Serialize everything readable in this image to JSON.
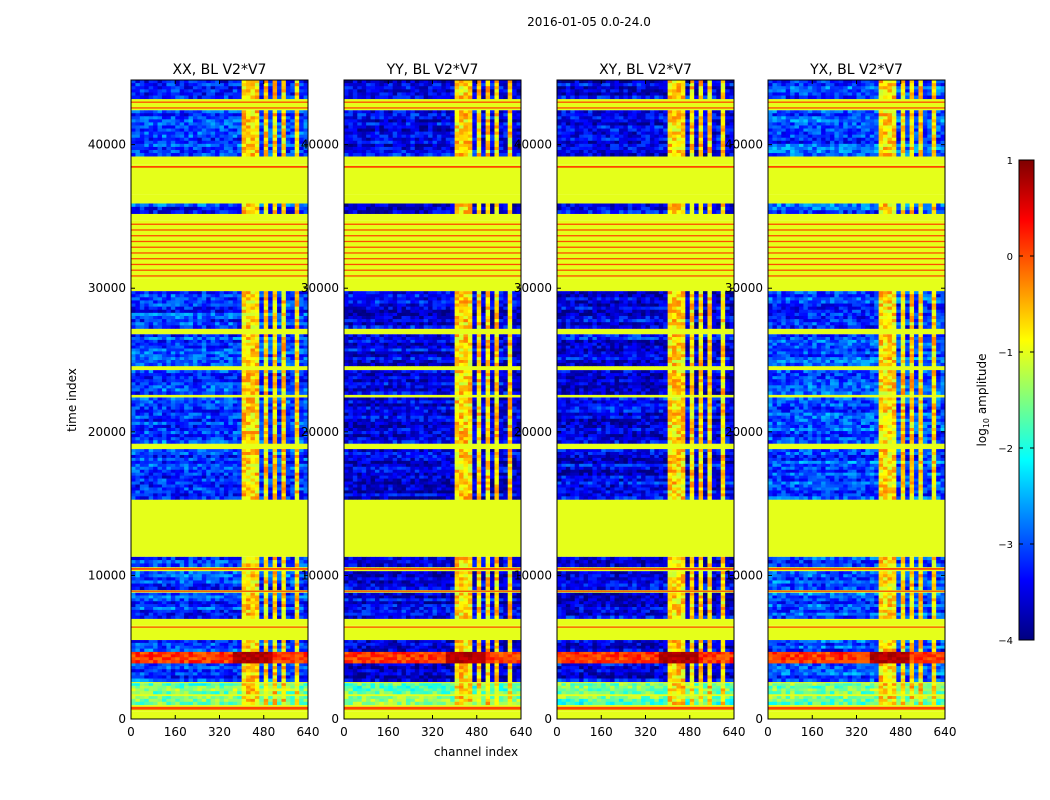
{
  "chart_data": {
    "type": "heatmap",
    "title": "2016-01-05 0.0-24.0",
    "xlabel": "channel index",
    "ylabel": "time index",
    "xlim": [
      0,
      640
    ],
    "ylim": [
      0,
      44500
    ],
    "x_ticks": [
      0,
      160,
      320,
      480,
      640
    ],
    "y_ticks": [
      0,
      10000,
      20000,
      30000,
      40000
    ],
    "panels": [
      {
        "title": "XX, BL V2*V7"
      },
      {
        "title": "YY, BL V2*V7"
      },
      {
        "title": "XY, BL V2*V7"
      },
      {
        "title": "YX, BL V2*V7"
      }
    ],
    "colorbar": {
      "label_prefix": "log",
      "label_sub": "10",
      "label_suffix": " amplitude",
      "range": [
        -4,
        1
      ],
      "ticks": [
        "1",
        "0",
        "−1",
        "−2",
        "−3",
        "−4"
      ],
      "colormap": "jet"
    },
    "flagged_value": -1.0,
    "time_bands": [
      {
        "y0": 0,
        "y1": 500,
        "kind": "flag"
      },
      {
        "y0": 500,
        "y1": 1000,
        "kind": "flag_orange"
      },
      {
        "y0": 1000,
        "y1": 1600,
        "kind": "data_low"
      },
      {
        "y0": 1600,
        "y1": 1750,
        "kind": "flag"
      },
      {
        "y0": 1750,
        "y1": 2500,
        "kind": "data_low"
      },
      {
        "y0": 2500,
        "y1": 2600,
        "kind": "flag"
      },
      {
        "y0": 2600,
        "y1": 3900,
        "kind": "data"
      },
      {
        "y0": 3900,
        "y1": 4700,
        "kind": "bright"
      },
      {
        "y0": 4700,
        "y1": 5500,
        "kind": "data"
      },
      {
        "y0": 5500,
        "y1": 6300,
        "kind": "flag"
      },
      {
        "y0": 6300,
        "y1": 6500,
        "kind": "flag_orange"
      },
      {
        "y0": 6500,
        "y1": 7000,
        "kind": "flag"
      },
      {
        "y0": 7000,
        "y1": 8800,
        "kind": "data"
      },
      {
        "y0": 8800,
        "y1": 9000,
        "kind": "flag_orange"
      },
      {
        "y0": 9000,
        "y1": 10300,
        "kind": "data"
      },
      {
        "y0": 10300,
        "y1": 10600,
        "kind": "flag_orange"
      },
      {
        "y0": 10600,
        "y1": 11300,
        "kind": "data"
      },
      {
        "y0": 11300,
        "y1": 15300,
        "kind": "flag"
      },
      {
        "y0": 15300,
        "y1": 18800,
        "kind": "data"
      },
      {
        "y0": 18800,
        "y1": 19200,
        "kind": "flag"
      },
      {
        "y0": 19200,
        "y1": 22400,
        "kind": "data"
      },
      {
        "y0": 22400,
        "y1": 22600,
        "kind": "flag"
      },
      {
        "y0": 22600,
        "y1": 24300,
        "kind": "data"
      },
      {
        "y0": 24300,
        "y1": 24600,
        "kind": "flag"
      },
      {
        "y0": 24600,
        "y1": 26800,
        "kind": "data"
      },
      {
        "y0": 26800,
        "y1": 27200,
        "kind": "flag"
      },
      {
        "y0": 27200,
        "y1": 29800,
        "kind": "data"
      },
      {
        "y0": 29800,
        "y1": 30700,
        "kind": "flag"
      },
      {
        "y0": 30700,
        "y1": 34700,
        "kind": "flag_striped"
      },
      {
        "y0": 34700,
        "y1": 35200,
        "kind": "flag"
      },
      {
        "y0": 35200,
        "y1": 35900,
        "kind": "data"
      },
      {
        "y0": 35900,
        "y1": 36500,
        "kind": "flag"
      },
      {
        "y0": 36500,
        "y1": 38300,
        "kind": "flag"
      },
      {
        "y0": 38300,
        "y1": 38600,
        "kind": "flag_orange"
      },
      {
        "y0": 38600,
        "y1": 39200,
        "kind": "flag"
      },
      {
        "y0": 39200,
        "y1": 42400,
        "kind": "data"
      },
      {
        "y0": 42400,
        "y1": 43200,
        "kind": "flag_striped"
      },
      {
        "y0": 43200,
        "y1": 44500,
        "kind": "data"
      }
    ],
    "rfi_channels": [
      {
        "x0": 408,
        "x1": 432
      },
      {
        "x0": 440,
        "x1": 468
      },
      {
        "x0": 480,
        "x1": 490
      },
      {
        "x0": 508,
        "x1": 520
      },
      {
        "x0": 545,
        "x1": 555
      },
      {
        "x0": 595,
        "x1": 608
      }
    ]
  }
}
